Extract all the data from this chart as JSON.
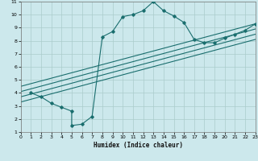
{
  "xlabel": "Humidex (Indice chaleur)",
  "background_color": "#cce8ec",
  "grid_color": "#aacccc",
  "line_color": "#1a6e6e",
  "xlim": [
    0,
    23
  ],
  "ylim": [
    1,
    11
  ],
  "xticks": [
    0,
    1,
    2,
    3,
    4,
    5,
    6,
    7,
    8,
    9,
    10,
    11,
    12,
    13,
    14,
    15,
    16,
    17,
    18,
    19,
    20,
    21,
    22,
    23
  ],
  "yticks": [
    1,
    2,
    3,
    4,
    5,
    6,
    7,
    8,
    9,
    10,
    11
  ],
  "main_x": [
    1,
    2,
    3,
    4,
    5,
    5,
    6,
    7,
    8,
    9,
    10,
    11,
    12,
    13,
    14,
    15,
    16,
    17,
    18,
    19,
    20,
    21,
    22,
    23
  ],
  "main_y": [
    4.0,
    3.7,
    3.2,
    2.9,
    2.6,
    1.5,
    1.6,
    2.2,
    8.3,
    8.7,
    9.85,
    10.0,
    10.3,
    11.0,
    10.3,
    9.9,
    9.4,
    8.1,
    7.85,
    7.85,
    8.2,
    8.5,
    8.8,
    9.3
  ],
  "straight_lines": [
    {
      "x0": 0,
      "y0": 4.5,
      "x1": 23,
      "y1": 9.3
    },
    {
      "x0": 0,
      "y0": 4.1,
      "x1": 23,
      "y1": 8.9
    },
    {
      "x0": 0,
      "y0": 3.7,
      "x1": 23,
      "y1": 8.5
    },
    {
      "x0": 0,
      "y0": 3.3,
      "x1": 23,
      "y1": 8.1
    }
  ]
}
